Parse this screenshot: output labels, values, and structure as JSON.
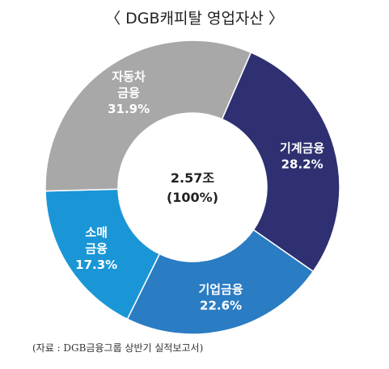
{
  "chart_data": {
    "type": "pie",
    "title": "〈 DGB캐피탈 영업자산 〉",
    "center_value": "2.57조",
    "center_percent": "(100%)",
    "slices": [
      {
        "label": [
          "기계금융"
        ],
        "value": 28.2,
        "value_label": "28.2%",
        "color": "#2e3072"
      },
      {
        "label": [
          "기업금융"
        ],
        "value": 22.6,
        "value_label": "22.6%",
        "color": "#2a7cc3"
      },
      {
        "label": [
          "소매",
          "금융"
        ],
        "value": 17.3,
        "value_label": "17.3%",
        "color": "#1a96d6"
      },
      {
        "label": [
          "자동차",
          "금융"
        ],
        "value": 31.9,
        "value_label": "31.9%",
        "color": "#a8a8a8"
      }
    ]
  },
  "source": "(자료 : DGB금융그룹 상반기 실적보고서)"
}
